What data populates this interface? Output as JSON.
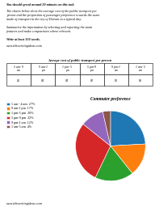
{
  "chart_data": [
    {
      "type": "table",
      "title": "Average cost of public transport per person",
      "categories": [
        "5 am- 9\nam",
        "9 am-1\npm",
        "1 pm- 5\npm",
        "5 pm-9\npm",
        "9 pm-1\nam",
        "1 am- 5\nam"
      ],
      "values": [
        5,
        4,
        4,
        3,
        6,
        8
      ],
      "value_labels": [
        "$5",
        "$4",
        "$4",
        "$3",
        "$6",
        "$8"
      ],
      "annotations": [
        "You should spend around 20 minutes on this task.",
        "The charts below show the average cost of the public transport per\nperson and the proportion of passenger preference towards the same\nmode of transport in the city of Darwin in a typical day.",
        "Summarise the information by selecting and reporting the main\nfeatures and make comparisons where relevant.",
        "Write at least 150 words.",
        "www.ieltswritingideas.com"
      ]
    },
    {
      "type": "pie",
      "title": "Commuter preference",
      "categories": [
        "1 am - 4 am  27%",
        "9 am-1 pm  17%",
        "1 pm-5 pm  20%",
        "5 pm-9 pm  32%",
        "9 pm-1 am  12%",
        "1 am-5 am  4%"
      ],
      "values": [
        27,
        17,
        20,
        32,
        12,
        4
      ],
      "legend": "upper left",
      "annotations": [
        "www.ieltswritingideas.com"
      ]
    }
  ]
}
